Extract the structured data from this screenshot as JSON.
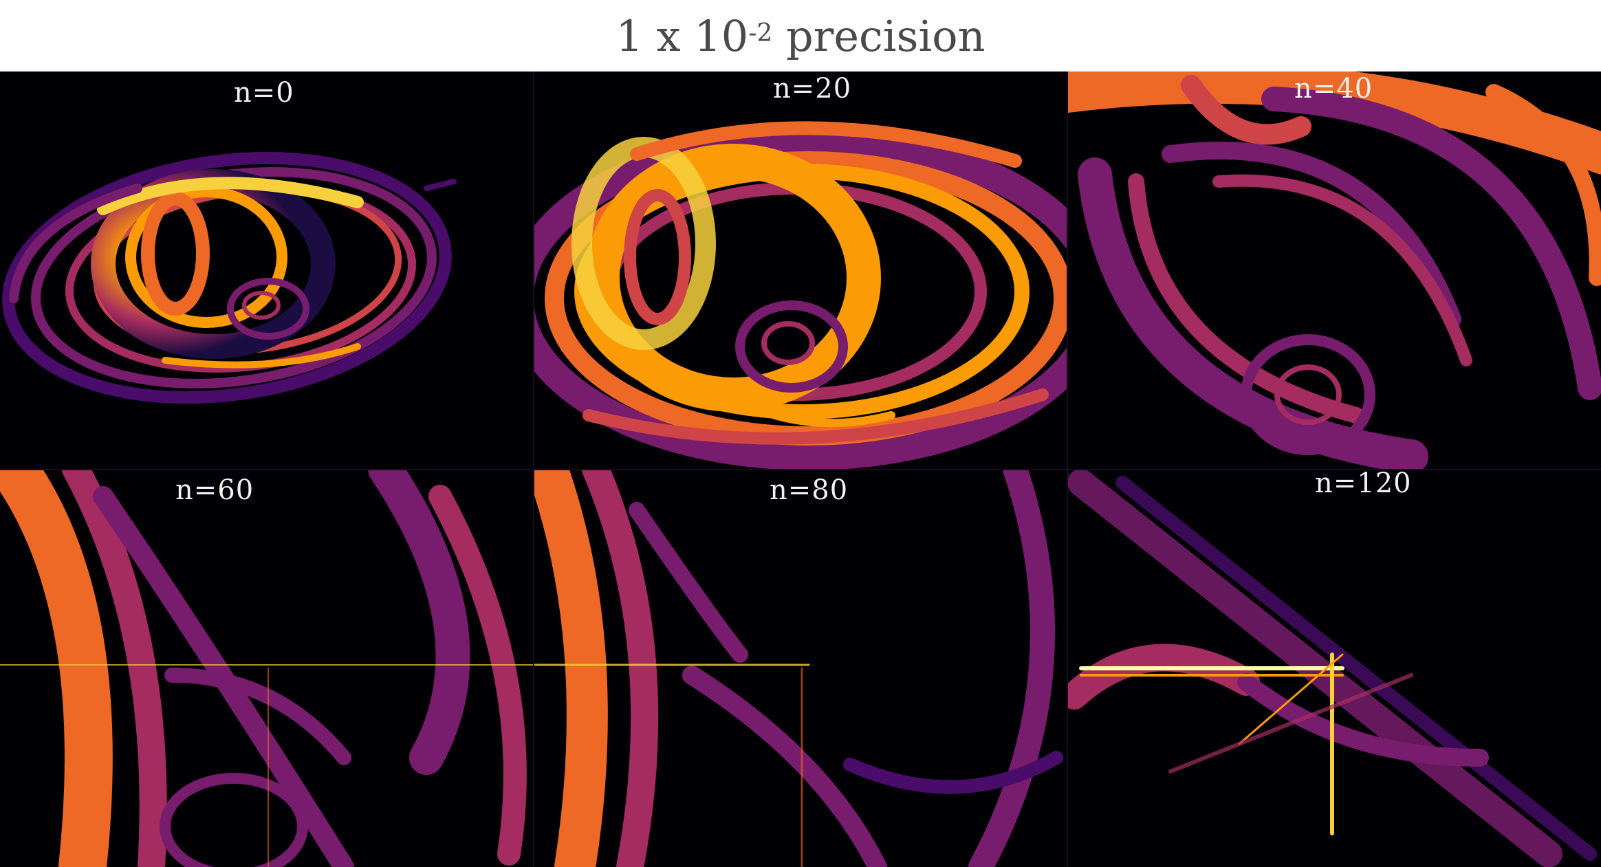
{
  "figure": {
    "title_main": "1 x 10",
    "title_exponent": "-2",
    "title_suffix": " precision",
    "colormap": [
      "#000004",
      "#1b0c41",
      "#4a0c6b",
      "#781c6d",
      "#a52c60",
      "#cf4446",
      "#ed6925",
      "#fb9b06",
      "#f7d13d",
      "#fcffa4"
    ],
    "panels": [
      {
        "label": "n=0"
      },
      {
        "label": "n=20"
      },
      {
        "label": "n=40"
      },
      {
        "label": "n=60"
      },
      {
        "label": "n=80"
      },
      {
        "label": "n=120"
      }
    ]
  }
}
